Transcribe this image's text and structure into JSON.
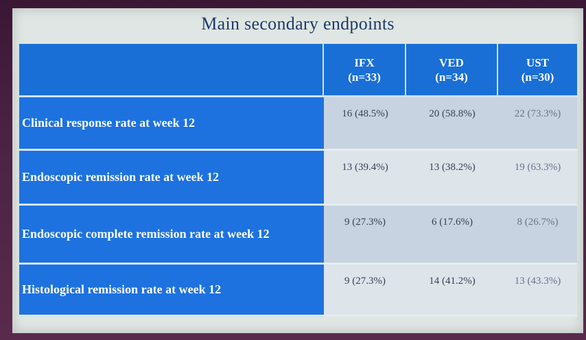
{
  "slide": {
    "title": "Main secondary endpoints"
  },
  "table": {
    "columns": [
      {
        "name": "IFX",
        "n": "(n=33)"
      },
      {
        "name": "VED",
        "n": "(n=34)"
      },
      {
        "name": "UST",
        "n": "(n=30)"
      }
    ],
    "rows": [
      {
        "label": "Clinical response rate at week 12",
        "values": [
          "16 (48.5%)",
          "20 (58.8%)",
          "22 (73.3%)"
        ]
      },
      {
        "label": "Endoscopic remission rate at week 12",
        "values": [
          "13 (39.4%)",
          "13 (38.2%)",
          "19 (63.3%)"
        ]
      },
      {
        "label": "Endoscopic complete remission rate at week 12",
        "values": [
          "9 (27.3%)",
          "6 (17.6%)",
          "8 (26.7%)"
        ]
      },
      {
        "label": "Histological remission rate at week 12",
        "values": [
          "9 (27.3%)",
          "14 (41.2%)",
          "13 (43.3%)"
        ]
      }
    ]
  },
  "colors": {
    "header_blue": "#1a6fd6",
    "title_navy": "#1f3a6b",
    "cell_bg": "#c7d3e0"
  }
}
